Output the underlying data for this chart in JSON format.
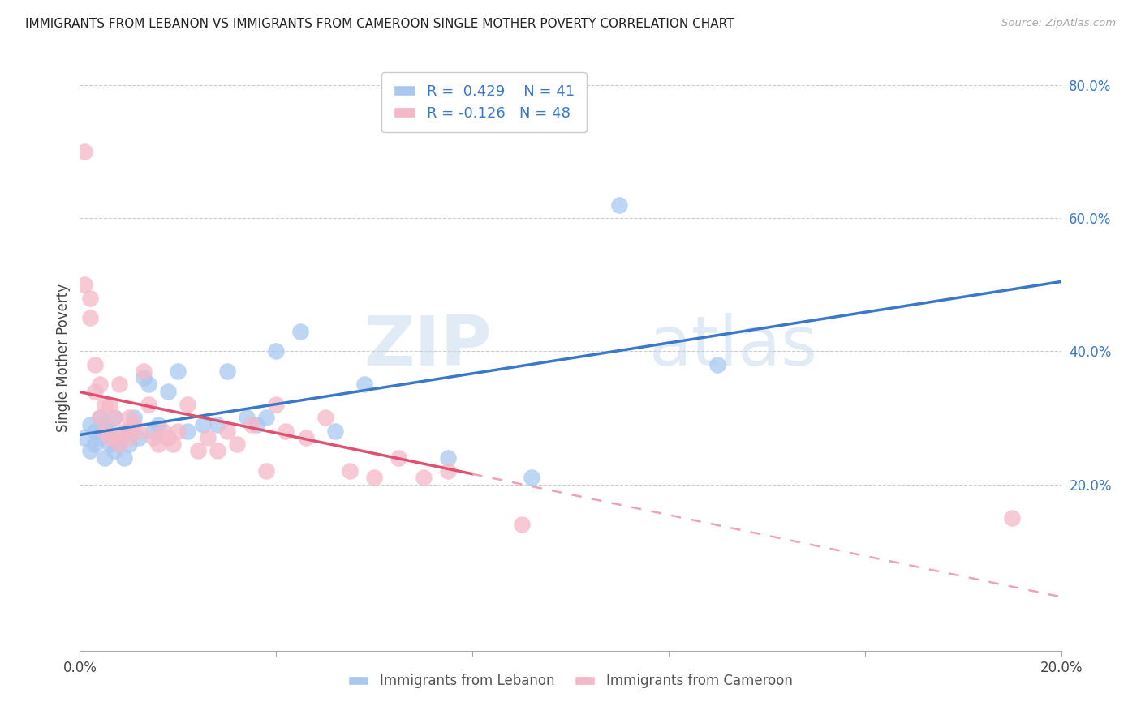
{
  "title": "IMMIGRANTS FROM LEBANON VS IMMIGRANTS FROM CAMEROON SINGLE MOTHER POVERTY CORRELATION CHART",
  "source": "Source: ZipAtlas.com",
  "ylabel": "Single Mother Poverty",
  "background_color": "#ffffff",
  "grid_color": "#cccccc",
  "watermark": "ZIPatlas",
  "lebanon_color": "#a8c8f0",
  "cameroon_color": "#f5b8c8",
  "lebanon_line_color": "#3a78c9",
  "cameroon_line_color": "#e05070",
  "cameroon_dashed_color": "#f0a0b8",
  "lebanon_R": 0.429,
  "lebanon_N": 41,
  "cameroon_R": -0.126,
  "cameroon_N": 48,
  "xlim": [
    0.0,
    0.2
  ],
  "ylim": [
    -0.05,
    0.83
  ],
  "yticks": [
    0.2,
    0.4,
    0.6,
    0.8
  ],
  "ytick_labels": [
    "20.0%",
    "40.0%",
    "60.0%",
    "80.0%"
  ],
  "xticks": [
    0.0,
    0.04,
    0.08,
    0.12,
    0.16,
    0.2
  ],
  "xtick_labels": [
    "0.0%",
    "",
    "",
    "",
    "",
    "20.0%"
  ],
  "lebanon_x": [
    0.001,
    0.002,
    0.002,
    0.003,
    0.003,
    0.004,
    0.004,
    0.005,
    0.005,
    0.006,
    0.006,
    0.007,
    0.007,
    0.008,
    0.008,
    0.009,
    0.01,
    0.01,
    0.011,
    0.012,
    0.013,
    0.014,
    0.015,
    0.016,
    0.018,
    0.02,
    0.022,
    0.025,
    0.028,
    0.03,
    0.034,
    0.036,
    0.038,
    0.04,
    0.045,
    0.052,
    0.058,
    0.075,
    0.092,
    0.11,
    0.13
  ],
  "lebanon_y": [
    0.27,
    0.29,
    0.25,
    0.26,
    0.28,
    0.3,
    0.27,
    0.29,
    0.24,
    0.28,
    0.26,
    0.3,
    0.25,
    0.27,
    0.26,
    0.24,
    0.28,
    0.26,
    0.3,
    0.27,
    0.36,
    0.35,
    0.28,
    0.29,
    0.34,
    0.37,
    0.28,
    0.29,
    0.29,
    0.37,
    0.3,
    0.29,
    0.3,
    0.4,
    0.43,
    0.28,
    0.35,
    0.24,
    0.21,
    0.62,
    0.38
  ],
  "cameroon_x": [
    0.001,
    0.001,
    0.002,
    0.002,
    0.003,
    0.003,
    0.004,
    0.004,
    0.005,
    0.005,
    0.006,
    0.006,
    0.007,
    0.007,
    0.008,
    0.008,
    0.009,
    0.01,
    0.01,
    0.011,
    0.012,
    0.013,
    0.014,
    0.015,
    0.016,
    0.017,
    0.018,
    0.019,
    0.02,
    0.022,
    0.024,
    0.026,
    0.028,
    0.03,
    0.032,
    0.035,
    0.038,
    0.04,
    0.042,
    0.046,
    0.05,
    0.055,
    0.06,
    0.065,
    0.07,
    0.075,
    0.09,
    0.19
  ],
  "cameroon_y": [
    0.7,
    0.5,
    0.48,
    0.45,
    0.38,
    0.34,
    0.35,
    0.3,
    0.32,
    0.28,
    0.27,
    0.32,
    0.3,
    0.27,
    0.26,
    0.35,
    0.28,
    0.27,
    0.3,
    0.29,
    0.28,
    0.37,
    0.32,
    0.27,
    0.26,
    0.28,
    0.27,
    0.26,
    0.28,
    0.32,
    0.25,
    0.27,
    0.25,
    0.28,
    0.26,
    0.29,
    0.22,
    0.32,
    0.28,
    0.27,
    0.3,
    0.22,
    0.21,
    0.24,
    0.21,
    0.22,
    0.14,
    0.15
  ]
}
